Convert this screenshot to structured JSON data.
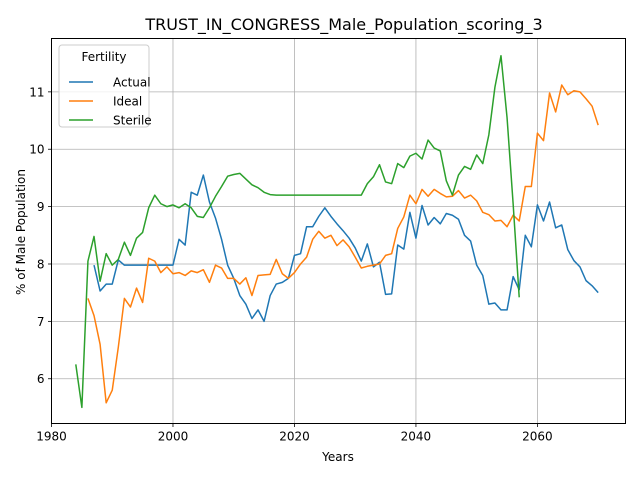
{
  "chart_data": {
    "type": "line",
    "title": "TRUST_IN_CONGRESS_Male_Population_scoring_3",
    "xlabel": "Years",
    "ylabel": "% of Male Population",
    "xlim": [
      1980,
      2074.5
    ],
    "ylim": [
      5.22,
      11.93
    ],
    "xticks": [
      1980,
      2000,
      2020,
      2040,
      2060
    ],
    "yticks": [
      6,
      7,
      8,
      9,
      10,
      11
    ],
    "grid": true,
    "legend": {
      "title": "Fertility",
      "placement": "top-left"
    },
    "series": [
      {
        "name": "Actual",
        "color": "#1f77b4",
        "points": [
          [
            1987,
            7.98
          ],
          [
            1988,
            7.53
          ],
          [
            1989,
            7.65
          ],
          [
            1990,
            7.65
          ],
          [
            1991,
            8.07
          ],
          [
            1992,
            7.98
          ],
          [
            1993,
            7.98
          ],
          [
            1994,
            7.98
          ],
          [
            1995,
            7.98
          ],
          [
            1996,
            7.98
          ],
          [
            1997,
            7.98
          ],
          [
            1998,
            7.98
          ],
          [
            1999,
            7.98
          ],
          [
            2000,
            7.98
          ],
          [
            2001,
            8.43
          ],
          [
            2002,
            8.33
          ],
          [
            2003,
            9.25
          ],
          [
            2004,
            9.2
          ],
          [
            2005,
            9.55
          ],
          [
            2006,
            9.08
          ],
          [
            2007,
            8.8
          ],
          [
            2008,
            8.43
          ],
          [
            2009,
            7.98
          ],
          [
            2010,
            7.75
          ],
          [
            2011,
            7.45
          ],
          [
            2012,
            7.3
          ],
          [
            2013,
            7.05
          ],
          [
            2014,
            7.2
          ],
          [
            2015,
            7.0
          ],
          [
            2016,
            7.45
          ],
          [
            2017,
            7.65
          ],
          [
            2018,
            7.68
          ],
          [
            2019,
            7.75
          ],
          [
            2020,
            8.15
          ],
          [
            2021,
            8.18
          ],
          [
            2022,
            8.65
          ],
          [
            2023,
            8.65
          ],
          [
            2024,
            8.83
          ],
          [
            2025,
            8.98
          ],
          [
            2026,
            8.83
          ],
          [
            2027,
            8.7
          ],
          [
            2028,
            8.58
          ],
          [
            2029,
            8.45
          ],
          [
            2030,
            8.28
          ],
          [
            2031,
            8.05
          ],
          [
            2032,
            8.35
          ],
          [
            2033,
            7.95
          ],
          [
            2034,
            8.03
          ],
          [
            2035,
            7.47
          ],
          [
            2036,
            7.48
          ],
          [
            2037,
            8.33
          ],
          [
            2038,
            8.26
          ],
          [
            2039,
            8.9
          ],
          [
            2040,
            8.45
          ],
          [
            2041,
            9.02
          ],
          [
            2042,
            8.68
          ],
          [
            2043,
            8.81
          ],
          [
            2044,
            8.7
          ],
          [
            2045,
            8.88
          ],
          [
            2046,
            8.85
          ],
          [
            2047,
            8.78
          ],
          [
            2048,
            8.5
          ],
          [
            2049,
            8.4
          ],
          [
            2050,
            7.98
          ],
          [
            2051,
            7.8
          ],
          [
            2052,
            7.3
          ],
          [
            2053,
            7.32
          ],
          [
            2054,
            7.2
          ],
          [
            2055,
            7.2
          ],
          [
            2056,
            7.78
          ],
          [
            2057,
            7.55
          ],
          [
            2058,
            8.5
          ],
          [
            2059,
            8.3
          ],
          [
            2060,
            9.03
          ],
          [
            2061,
            8.75
          ],
          [
            2062,
            9.08
          ],
          [
            2063,
            8.63
          ],
          [
            2064,
            8.68
          ],
          [
            2065,
            8.25
          ],
          [
            2066,
            8.06
          ],
          [
            2067,
            7.95
          ],
          [
            2068,
            7.71
          ],
          [
            2069,
            7.62
          ],
          [
            2070,
            7.5
          ]
        ]
      },
      {
        "name": "Ideal",
        "color": "#ff7f0e",
        "points": [
          [
            1986,
            7.4
          ],
          [
            1987,
            7.1
          ],
          [
            1988,
            6.6
          ],
          [
            1989,
            5.58
          ],
          [
            1990,
            5.8
          ],
          [
            1991,
            6.55
          ],
          [
            1992,
            7.4
          ],
          [
            1993,
            7.25
          ],
          [
            1994,
            7.58
          ],
          [
            1995,
            7.33
          ],
          [
            1996,
            8.1
          ],
          [
            1997,
            8.05
          ],
          [
            1998,
            7.85
          ],
          [
            1999,
            7.95
          ],
          [
            2000,
            7.83
          ],
          [
            2001,
            7.85
          ],
          [
            2002,
            7.8
          ],
          [
            2003,
            7.88
          ],
          [
            2004,
            7.85
          ],
          [
            2005,
            7.9
          ],
          [
            2006,
            7.68
          ],
          [
            2007,
            7.98
          ],
          [
            2008,
            7.93
          ],
          [
            2009,
            7.75
          ],
          [
            2010,
            7.75
          ],
          [
            2011,
            7.65
          ],
          [
            2012,
            7.76
          ],
          [
            2013,
            7.45
          ],
          [
            2014,
            7.8
          ],
          [
            2015,
            7.81
          ],
          [
            2016,
            7.82
          ],
          [
            2017,
            8.08
          ],
          [
            2018,
            7.83
          ],
          [
            2019,
            7.75
          ],
          [
            2020,
            7.85
          ],
          [
            2021,
            8.0
          ],
          [
            2022,
            8.12
          ],
          [
            2023,
            8.43
          ],
          [
            2024,
            8.57
          ],
          [
            2025,
            8.45
          ],
          [
            2026,
            8.5
          ],
          [
            2027,
            8.32
          ],
          [
            2028,
            8.42
          ],
          [
            2029,
            8.3
          ],
          [
            2030,
            8.12
          ],
          [
            2031,
            7.93
          ],
          [
            2032,
            7.96
          ],
          [
            2033,
            7.98
          ],
          [
            2034,
            8.0
          ],
          [
            2035,
            8.15
          ],
          [
            2036,
            8.18
          ],
          [
            2037,
            8.62
          ],
          [
            2038,
            8.82
          ],
          [
            2039,
            9.2
          ],
          [
            2040,
            9.05
          ],
          [
            2041,
            9.3
          ],
          [
            2042,
            9.18
          ],
          [
            2043,
            9.3
          ],
          [
            2044,
            9.23
          ],
          [
            2045,
            9.17
          ],
          [
            2046,
            9.18
          ],
          [
            2047,
            9.28
          ],
          [
            2048,
            9.15
          ],
          [
            2049,
            9.2
          ],
          [
            2050,
            9.1
          ],
          [
            2051,
            8.9
          ],
          [
            2052,
            8.86
          ],
          [
            2053,
            8.75
          ],
          [
            2054,
            8.76
          ],
          [
            2055,
            8.65
          ],
          [
            2056,
            8.85
          ],
          [
            2057,
            8.75
          ],
          [
            2058,
            9.35
          ],
          [
            2059,
            9.35
          ],
          [
            2060,
            10.28
          ],
          [
            2061,
            10.15
          ],
          [
            2062,
            10.98
          ],
          [
            2063,
            10.65
          ],
          [
            2064,
            11.12
          ],
          [
            2065,
            10.95
          ],
          [
            2066,
            11.02
          ],
          [
            2067,
            11.0
          ],
          [
            2068,
            10.88
          ],
          [
            2069,
            10.75
          ],
          [
            2070,
            10.42
          ]
        ]
      },
      {
        "name": "Sterile",
        "color": "#2ca02c",
        "points": [
          [
            1984,
            6.25
          ],
          [
            1985,
            5.5
          ],
          [
            1986,
            8.05
          ],
          [
            1987,
            8.48
          ],
          [
            1988,
            7.7
          ],
          [
            1989,
            8.18
          ],
          [
            1990,
            7.98
          ],
          [
            1991,
            8.08
          ],
          [
            1992,
            8.38
          ],
          [
            1993,
            8.15
          ],
          [
            1994,
            8.45
          ],
          [
            1995,
            8.55
          ],
          [
            1996,
            8.98
          ],
          [
            1997,
            9.2
          ],
          [
            1998,
            9.05
          ],
          [
            1999,
            9.0
          ],
          [
            2000,
            9.03
          ],
          [
            2001,
            8.98
          ],
          [
            2002,
            9.05
          ],
          [
            2003,
            8.98
          ],
          [
            2004,
            8.83
          ],
          [
            2005,
            8.81
          ],
          [
            2006,
            8.98
          ],
          [
            2007,
            9.18
          ],
          [
            2008,
            9.35
          ],
          [
            2009,
            9.53
          ],
          [
            2010,
            9.56
          ],
          [
            2011,
            9.58
          ],
          [
            2012,
            9.48
          ],
          [
            2013,
            9.38
          ],
          [
            2014,
            9.33
          ],
          [
            2015,
            9.25
          ],
          [
            2016,
            9.21
          ],
          [
            2017,
            9.2
          ],
          [
            2018,
            9.2
          ],
          [
            2019,
            9.2
          ],
          [
            2020,
            9.2
          ],
          [
            2021,
            9.2
          ],
          [
            2022,
            9.2
          ],
          [
            2023,
            9.2
          ],
          [
            2024,
            9.2
          ],
          [
            2025,
            9.2
          ],
          [
            2026,
            9.2
          ],
          [
            2027,
            9.2
          ],
          [
            2028,
            9.2
          ],
          [
            2029,
            9.2
          ],
          [
            2030,
            9.2
          ],
          [
            2031,
            9.2
          ],
          [
            2032,
            9.4
          ],
          [
            2033,
            9.52
          ],
          [
            2034,
            9.73
          ],
          [
            2035,
            9.43
          ],
          [
            2036,
            9.4
          ],
          [
            2037,
            9.75
          ],
          [
            2038,
            9.68
          ],
          [
            2039,
            9.88
          ],
          [
            2040,
            9.93
          ],
          [
            2041,
            9.83
          ],
          [
            2042,
            10.16
          ],
          [
            2043,
            10.02
          ],
          [
            2044,
            9.97
          ],
          [
            2045,
            9.45
          ],
          [
            2046,
            9.2
          ],
          [
            2047,
            9.55
          ],
          [
            2048,
            9.7
          ],
          [
            2049,
            9.65
          ],
          [
            2050,
            9.9
          ],
          [
            2051,
            9.75
          ],
          [
            2052,
            10.25
          ],
          [
            2053,
            11.08
          ],
          [
            2054,
            11.63
          ],
          [
            2055,
            10.55
          ],
          [
            2056,
            9.05
          ],
          [
            2057,
            7.42
          ]
        ]
      }
    ]
  }
}
